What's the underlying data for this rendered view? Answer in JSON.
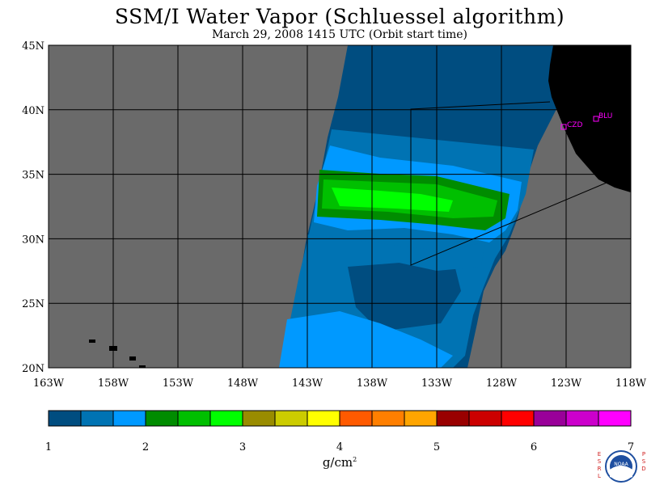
{
  "title": "SSM/I Water Vapor (Schluessel algorithm)",
  "subtitle": "March 29, 2008  1415 UTC  (Orbit start time)",
  "map": {
    "lon_labels": [
      "163W",
      "158W",
      "153W",
      "148W",
      "143W",
      "138W",
      "133W",
      "128W",
      "123W",
      "118W"
    ],
    "lat_labels": [
      "45N",
      "40N",
      "35N",
      "30N",
      "25N",
      "20N"
    ],
    "stations": [
      {
        "code": "CZD"
      },
      {
        "code": "BLU"
      }
    ],
    "colors": {
      "land": "#000000",
      "no_data": "#6a6a6a",
      "grid": "#000000",
      "station": "#ff00ff"
    }
  },
  "colorbar": {
    "colors": [
      "#004d80",
      "#0073b3",
      "#0099ff",
      "#008c00",
      "#00bf00",
      "#00ff00",
      "#998c00",
      "#cccc00",
      "#ffff00",
      "#ff5a00",
      "#ff7f00",
      "#ffa500",
      "#990000",
      "#cc0000",
      "#ff0000",
      "#990099",
      "#cc00cc",
      "#ff00ff"
    ],
    "tick_labels": [
      "1",
      "2",
      "3",
      "4",
      "5",
      "6",
      "7"
    ],
    "unit_text": "g/cm"
  },
  "logo": {
    "text": "NOAA",
    "left_text": "ESRL",
    "right_text": "PSD"
  }
}
